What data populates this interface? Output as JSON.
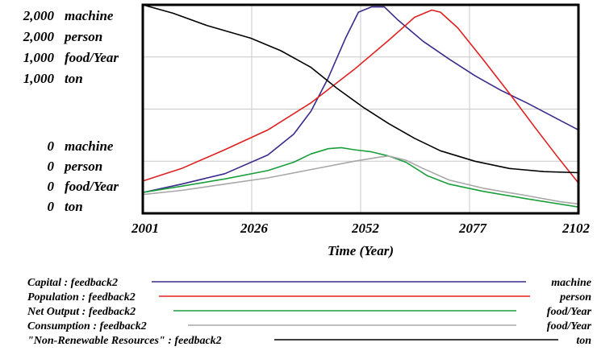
{
  "chart_data": {
    "type": "line",
    "x_axis": {
      "label": "Time (Year)",
      "range": [
        2001,
        2102
      ],
      "ticks": [
        "2001",
        "2026",
        "2052",
        "2077",
        "2102"
      ]
    },
    "y_axis_top_labels": [
      {
        "value": "2,000",
        "unit": "machine"
      },
      {
        "value": "2,000",
        "unit": "person"
      },
      {
        "value": "1,000",
        "unit": "food/Year"
      },
      {
        "value": "1,000",
        "unit": "ton"
      }
    ],
    "y_axis_bottom_labels": [
      {
        "value": "0",
        "unit": "machine"
      },
      {
        "value": "0",
        "unit": "person"
      },
      {
        "value": "0",
        "unit": "food/Year"
      },
      {
        "value": "0",
        "unit": "ton"
      }
    ],
    "grid": true,
    "series": [
      {
        "name": "Capital : feedback2",
        "unit": "machine",
        "color": "#3b2a8c",
        "ymax": 2000,
        "points": [
          [
            2001,
            200
          ],
          [
            2010,
            280
          ],
          [
            2020,
            380
          ],
          [
            2030,
            560
          ],
          [
            2036,
            760
          ],
          [
            2040,
            980
          ],
          [
            2044,
            1300
          ],
          [
            2048,
            1680
          ],
          [
            2051,
            1930
          ],
          [
            2054,
            1980
          ],
          [
            2057,
            1980
          ],
          [
            2060,
            1860
          ],
          [
            2066,
            1650
          ],
          [
            2072,
            1480
          ],
          [
            2078,
            1320
          ],
          [
            2084,
            1180
          ],
          [
            2090,
            1060
          ],
          [
            2096,
            930
          ],
          [
            2102,
            800
          ]
        ]
      },
      {
        "name": "Population : feedback2",
        "unit": "person",
        "color": "#e02020",
        "ymax": 2000,
        "points": [
          [
            2001,
            310
          ],
          [
            2010,
            430
          ],
          [
            2020,
            610
          ],
          [
            2030,
            800
          ],
          [
            2040,
            1060
          ],
          [
            2050,
            1380
          ],
          [
            2058,
            1660
          ],
          [
            2064,
            1880
          ],
          [
            2068,
            1950
          ],
          [
            2070,
            1930
          ],
          [
            2074,
            1780
          ],
          [
            2080,
            1470
          ],
          [
            2086,
            1150
          ],
          [
            2092,
            820
          ],
          [
            2097,
            550
          ],
          [
            2102,
            290
          ]
        ]
      },
      {
        "name": "Net Output : feedback2",
        "unit": "food/Year",
        "color": "#1a9e3c",
        "ymax": 1000,
        "points": [
          [
            2001,
            100
          ],
          [
            2010,
            130
          ],
          [
            2020,
            165
          ],
          [
            2030,
            205
          ],
          [
            2036,
            245
          ],
          [
            2040,
            285
          ],
          [
            2044,
            310
          ],
          [
            2047,
            315
          ],
          [
            2050,
            305
          ],
          [
            2054,
            295
          ],
          [
            2058,
            275
          ],
          [
            2062,
            245
          ],
          [
            2067,
            180
          ],
          [
            2072,
            140
          ],
          [
            2080,
            105
          ],
          [
            2090,
            70
          ],
          [
            2102,
            30
          ]
        ]
      },
      {
        "name": "Consumption : feedback2",
        "unit": "food/Year",
        "color": "#a8a8a8",
        "ymax": 1000,
        "points": [
          [
            2001,
            90
          ],
          [
            2010,
            110
          ],
          [
            2020,
            140
          ],
          [
            2030,
            170
          ],
          [
            2040,
            210
          ],
          [
            2050,
            250
          ],
          [
            2056,
            270
          ],
          [
            2058,
            275
          ],
          [
            2062,
            255
          ],
          [
            2066,
            215
          ],
          [
            2072,
            160
          ],
          [
            2080,
            120
          ],
          [
            2090,
            85
          ],
          [
            2098,
            55
          ],
          [
            2102,
            45
          ]
        ]
      },
      {
        "name": "\"Non-Renewable Resources\" : feedback2",
        "unit": "ton",
        "color": "#000000",
        "ymax": 1000,
        "points": [
          [
            2001,
            1000
          ],
          [
            2008,
            960
          ],
          [
            2016,
            900
          ],
          [
            2026,
            840
          ],
          [
            2033,
            780
          ],
          [
            2040,
            700
          ],
          [
            2046,
            600
          ],
          [
            2052,
            510
          ],
          [
            2058,
            430
          ],
          [
            2064,
            360
          ],
          [
            2070,
            300
          ],
          [
            2078,
            250
          ],
          [
            2086,
            215
          ],
          [
            2094,
            200
          ],
          [
            2102,
            195
          ]
        ]
      }
    ]
  }
}
